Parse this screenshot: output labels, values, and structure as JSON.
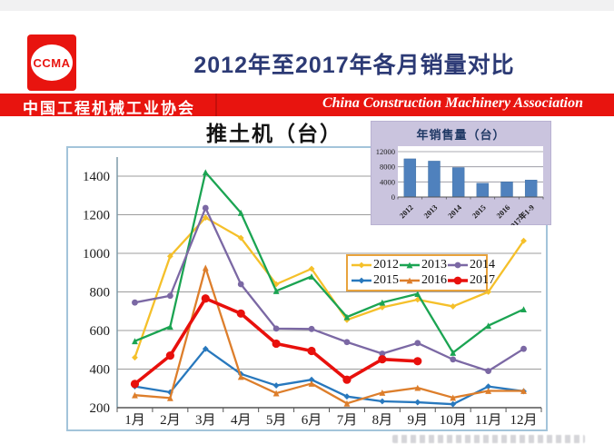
{
  "header": {
    "logo_text": "CCMA",
    "title": "2012年至2017年各月销量对比",
    "banner_cn": "中国工程机械工业协会",
    "banner_en": "China Construction Machinery Association"
  },
  "chart_data": [
    {
      "type": "line",
      "title": "推土机（台）",
      "categories": [
        "1月",
        "2月",
        "3月",
        "4月",
        "5月",
        "6月",
        "7月",
        "8月",
        "9月",
        "10月",
        "11月",
        "12月"
      ],
      "ylim": [
        200,
        1400
      ],
      "ytick_step": 200,
      "grid": true,
      "legend_position": "inside-upper-right",
      "series": [
        {
          "name": "2012",
          "color": "#f5c02a",
          "marker": "diamond",
          "values": [
            460,
            985,
            1185,
            1080,
            840,
            920,
            655,
            720,
            760,
            725,
            800,
            1065
          ]
        },
        {
          "name": "2013",
          "color": "#1ba452",
          "marker": "triangle",
          "values": [
            545,
            620,
            1420,
            1210,
            805,
            880,
            670,
            745,
            790,
            485,
            625,
            710
          ]
        },
        {
          "name": "2014",
          "color": "#7b68a4",
          "marker": "circle",
          "values": [
            745,
            780,
            1235,
            840,
            610,
            608,
            540,
            480,
            535,
            450,
            390,
            505
          ]
        },
        {
          "name": "2015",
          "color": "#2878bd",
          "marker": "diamond",
          "values": [
            310,
            280,
            505,
            375,
            315,
            345,
            258,
            233,
            228,
            218,
            310,
            285
          ]
        },
        {
          "name": "2016",
          "color": "#dd7e2b",
          "marker": "triangle",
          "values": [
            265,
            250,
            925,
            360,
            275,
            325,
            222,
            278,
            303,
            252,
            287,
            287
          ]
        },
        {
          "name": "2017",
          "color": "#e8100c",
          "marker": "circle",
          "bold": true,
          "values": [
            323,
            470,
            766,
            688,
            532,
            494,
            345,
            451,
            441
          ]
        }
      ]
    },
    {
      "type": "bar",
      "title": "年销售量（台）",
      "categories": [
        "2012",
        "2013",
        "2014",
        "2015",
        "2016",
        "2017年1-9"
      ],
      "values": [
        10100,
        9500,
        7800,
        3650,
        4000,
        4500
      ],
      "ylim": [
        0,
        12000
      ],
      "ytick_step": 4000,
      "bar_color": "#4f81bd",
      "bg_color": "#cac4de"
    }
  ]
}
